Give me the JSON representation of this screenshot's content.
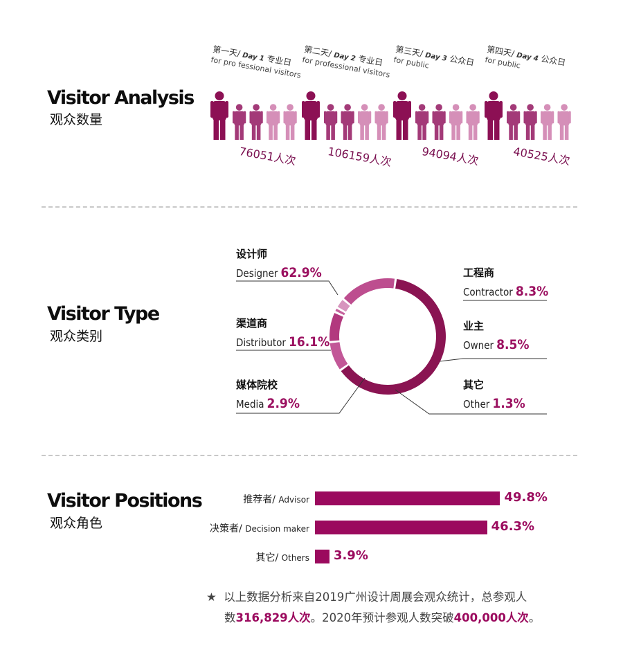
{
  "sections": {
    "analysis": {
      "title": "Visitor Analysis",
      "subtitle": "观众数量"
    },
    "type": {
      "title": "Visitor Type",
      "subtitle": "观众类别"
    },
    "positions": {
      "title": "Visitor Positions",
      "subtitle": "观众角色"
    }
  },
  "days": [
    {
      "cn": "第一天/ ",
      "day": "Day 1",
      "suffix": " 专业日",
      "en": "for pro fessional visitors",
      "count": "76051人次"
    },
    {
      "cn": "第二天/ ",
      "day": "Day 2",
      "suffix": " 专业日",
      "en": "for professional visitors",
      "count": "106159人次"
    },
    {
      "cn": "第三天/ ",
      "day": "Day 3",
      "suffix": " 公众日",
      "en": "for public",
      "count": "94094人次"
    },
    {
      "cn": "第四天/ ",
      "day": "Day 4",
      "suffix": " 公众日",
      "en": "for public",
      "count": "40525人次"
    }
  ],
  "colors": {
    "accent": "#9b0a5e",
    "figure_dark": "#8c1054",
    "figure_mid": "#a33a78",
    "figure_light": "#d58fb8",
    "ring": [
      "#8a1452",
      "#c25797",
      "#b2397e",
      "#c5609c",
      "#d795be",
      "#bd4e8f"
    ]
  },
  "chart_data": [
    {
      "type": "pie",
      "title": "",
      "categories": [
        "设计师 Designer",
        "工程商 Contractor",
        "业主 Owner",
        "其它 Other",
        "媒体院校 Media",
        "渠道商 Distributor"
      ],
      "values": [
        62.9,
        8.3,
        8.5,
        1.3,
        2.9,
        16.1
      ],
      "labels": [
        {
          "cn": "设计师",
          "en": "Designer",
          "pct": "62.9%"
        },
        {
          "cn": "工程商",
          "en": "Contractor",
          "pct": "8.3%"
        },
        {
          "cn": "业主",
          "en": "Owner",
          "pct": "8.5%"
        },
        {
          "cn": "其它",
          "en": "Other",
          "pct": "1.3%"
        },
        {
          "cn": "媒体院校",
          "en": "Media",
          "pct": "2.9%"
        },
        {
          "cn": "渠道商",
          "en": "Distributor",
          "pct": "16.1%"
        }
      ],
      "style": "donut"
    },
    {
      "type": "bar",
      "orientation": "horizontal",
      "title": "",
      "categories": [
        "推荐者/ Advisor",
        "决策者/ Decision maker",
        "其它/ Others"
      ],
      "labels": [
        {
          "cn": "推荐者/ ",
          "en": "Advisor"
        },
        {
          "cn": "决策者/ ",
          "en": "Decision maker"
        },
        {
          "cn": "其它/ ",
          "en": "Others"
        }
      ],
      "values": [
        49.8,
        46.3,
        3.9
      ],
      "value_labels": [
        "49.8%",
        "46.3%",
        "3.9%"
      ],
      "xlim": [
        0,
        54
      ]
    },
    {
      "type": "pictogram",
      "title": "",
      "categories": [
        "Day 1",
        "Day 2",
        "Day 3",
        "Day 4"
      ],
      "values": [
        76051,
        106159,
        94094,
        40525
      ],
      "figures_per_day": 5
    }
  ],
  "footnote": {
    "star": "★",
    "line1": "以上数据分析来自2019广州设计周展会观众统计，总参观人",
    "line2_a": "数",
    "line2_b": "316,829人次",
    "line2_c": "。2020年预计参观人数突破",
    "line2_d": "400,000人次",
    "line2_e": "。"
  }
}
